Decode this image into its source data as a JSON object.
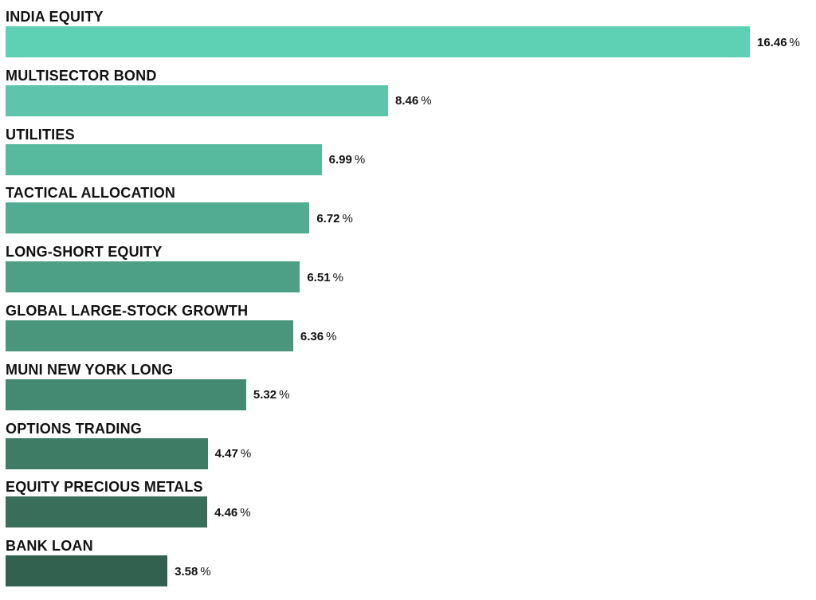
{
  "chart_data": {
    "type": "bar",
    "orientation": "horizontal",
    "categories": [
      "INDIA EQUITY",
      "MULTISECTOR BOND",
      "UTILITIES",
      "TACTICAL ALLOCATION",
      "LONG-SHORT EQUITY",
      "GLOBAL LARGE-STOCK GROWTH",
      "MUNI NEW YORK LONG",
      "OPTIONS TRADING",
      "EQUITY PRECIOUS METALS",
      "BANK LOAN"
    ],
    "values": [
      16.46,
      8.46,
      6.99,
      6.72,
      6.51,
      6.36,
      5.32,
      4.47,
      4.46,
      3.58
    ],
    "value_labels": [
      "16.46",
      "8.46",
      "6.99",
      "6.72",
      "6.51",
      "6.36",
      "5.32",
      "4.47",
      "4.46",
      "3.58"
    ],
    "value_unit": "%",
    "colors": [
      "#5ed1b5",
      "#5ec5aa",
      "#57b99d",
      "#52ac91",
      "#4da086",
      "#49967d",
      "#448a72",
      "#3e7c66",
      "#396e5b",
      "#336150"
    ],
    "title": "",
    "xlabel": "",
    "ylabel": "",
    "grid": false,
    "legend": "none"
  }
}
